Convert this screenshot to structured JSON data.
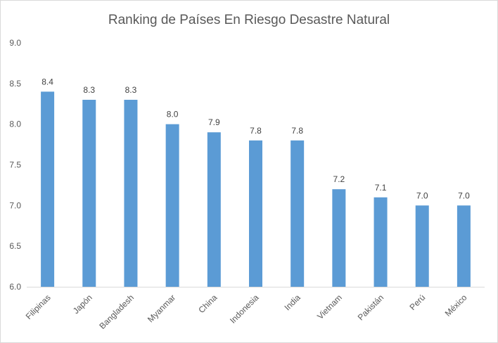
{
  "chart_data": {
    "type": "bar",
    "title": "Ranking de Países En Riesgo Desastre Natural",
    "xlabel": "",
    "ylabel": "",
    "categories": [
      "Filipinas",
      "Japón",
      "Bangladesh",
      "Myanmar",
      "China",
      "Indonesia",
      "India",
      "Vietnam",
      "Pakistán",
      "Perú",
      "México"
    ],
    "values": [
      8.4,
      8.3,
      8.3,
      8.0,
      7.9,
      7.8,
      7.8,
      7.2,
      7.1,
      7.0,
      7.0
    ],
    "data_labels": [
      "8.4",
      "8.3",
      "8.3",
      "8.0",
      "7.9",
      "7.8",
      "7.8",
      "7.2",
      "7.1",
      "7.0",
      "7.0"
    ],
    "ylim": [
      6.0,
      9.0
    ],
    "yticks": [
      "6.0",
      "6.5",
      "7.0",
      "7.5",
      "8.0",
      "8.5",
      "9.0"
    ],
    "ytick_values": [
      6.0,
      6.5,
      7.0,
      7.5,
      8.0,
      8.5,
      9.0
    ],
    "grid": false,
    "legend": "none",
    "bar_color": "#5b9bd5",
    "axis_color": "#d9d9d9"
  }
}
